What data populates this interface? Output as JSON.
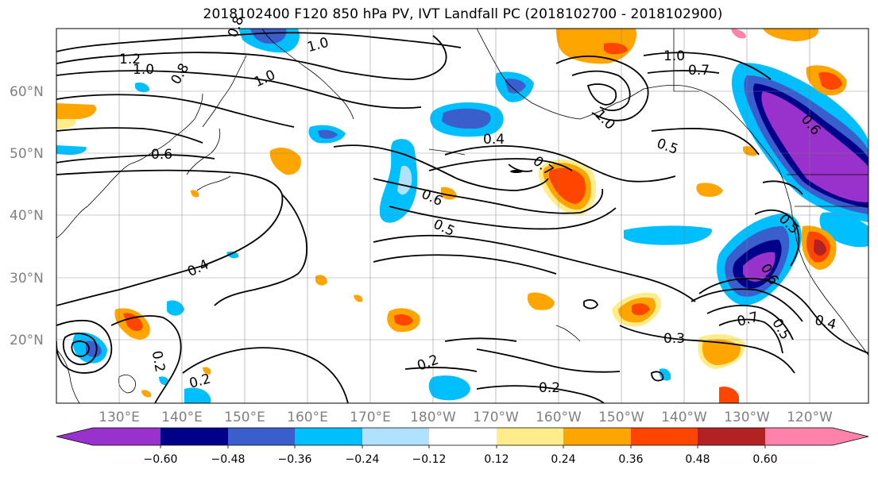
{
  "title": "2018102400 F120 850 hPa PV, IVT Landfall PC (2018102700 - 2018102900)",
  "map": {
    "lat_labels": [
      "60°N",
      "50°N",
      "40°N",
      "30°N",
      "20°N"
    ],
    "lon_labels": [
      "130°E",
      "140°E",
      "150°E",
      "160°E",
      "170°E",
      "180°W",
      "170°W",
      "160°W",
      "150°W",
      "140°W",
      "130°W",
      "120°W"
    ],
    "contour_labels": [
      "1.2",
      "1.0",
      "0.8",
      "1.0",
      "1.0",
      "0.8",
      "0.6",
      "0.4",
      "0.6",
      "0.5",
      "0.4",
      "0.2",
      "0.2",
      "0.2",
      "0.2",
      "0.3",
      "0.4",
      "0.5",
      "0.7",
      "0.7",
      "1.0",
      "0.5",
      "1.0",
      "0.6",
      "0.5",
      "0.7",
      "0.6"
    ]
  },
  "colorbar": {
    "ticks": [
      "−0.60",
      "−0.48",
      "−0.36",
      "−0.24",
      "−0.12",
      "0.12",
      "0.24",
      "0.36",
      "0.48",
      "0.60"
    ],
    "colors": [
      "#9932cc",
      "#00008b",
      "#3a5fcd",
      "#00bfff",
      "#b0e2ff",
      "#ffffff",
      "#ffec8b",
      "#ffa500",
      "#ff4500",
      "#b22222",
      "#ff82ab"
    ]
  }
}
